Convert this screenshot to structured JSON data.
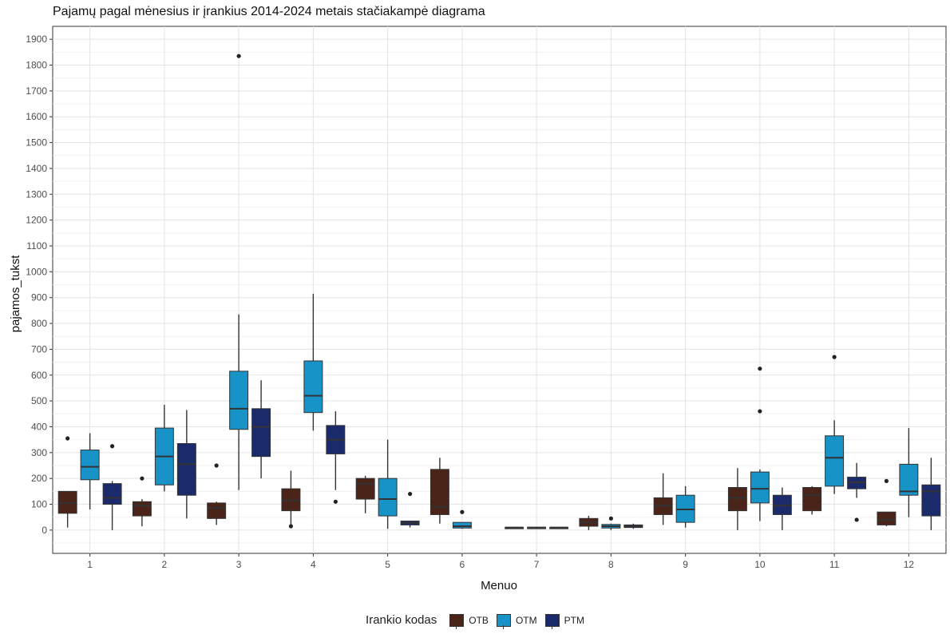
{
  "title": "Pajamų pagal mėnesius ir įrankius 2014-2024 metais stačiakampė diagrama",
  "legend": {
    "title": "Irankio kodas",
    "items": [
      {
        "label": "OTB",
        "color": "#4a2419"
      },
      {
        "label": "OTM",
        "color": "#1793c8"
      },
      {
        "label": "PTM",
        "color": "#1b2a6b"
      }
    ]
  },
  "chart_data": {
    "type": "boxplot",
    "title": "Pajamų pagal mėnesius ir įrankius 2014-2024 metais stačiakampė diagrama",
    "xlabel": "Menuo",
    "ylabel": "pajamos_tukst",
    "categories": [
      "1",
      "2",
      "3",
      "4",
      "5",
      "6",
      "7",
      "8",
      "9",
      "10",
      "11",
      "12"
    ],
    "yticks": [
      0,
      100,
      200,
      300,
      400,
      500,
      600,
      700,
      800,
      900,
      1000,
      1100,
      1200,
      1300,
      1400,
      1500,
      1600,
      1700,
      1800,
      1900
    ],
    "ylim": [
      -90,
      1950
    ],
    "grid": true,
    "legend_position": "bottom",
    "series": [
      {
        "name": "OTB",
        "color": "#4a2419",
        "boxes": [
          {
            "x": "1",
            "min": 10,
            "q1": 65,
            "median": 105,
            "q3": 150,
            "max": 150,
            "outliers": [
              355
            ]
          },
          {
            "x": "2",
            "min": 15,
            "q1": 55,
            "median": 95,
            "q3": 110,
            "max": 120,
            "outliers": [
              200
            ]
          },
          {
            "x": "3",
            "min": 20,
            "q1": 45,
            "median": 85,
            "q3": 105,
            "max": 110,
            "outliers": [
              250
            ]
          },
          {
            "x": "4",
            "min": 20,
            "q1": 75,
            "median": 115,
            "q3": 160,
            "max": 230,
            "outliers": [
              15
            ]
          },
          {
            "x": "5",
            "min": 65,
            "q1": 120,
            "median": 180,
            "q3": 200,
            "max": 210,
            "outliers": []
          },
          {
            "x": "6",
            "min": 25,
            "q1": 60,
            "median": 90,
            "q3": 235,
            "max": 280,
            "outliers": []
          },
          {
            "x": "7",
            "min": 10,
            "q1": 10,
            "median": 10,
            "q3": 10,
            "max": 10,
            "outliers": []
          },
          {
            "x": "8",
            "min": 0,
            "q1": 15,
            "median": 30,
            "q3": 45,
            "max": 55,
            "outliers": []
          },
          {
            "x": "9",
            "min": 20,
            "q1": 60,
            "median": 95,
            "q3": 125,
            "max": 220,
            "outliers": []
          },
          {
            "x": "10",
            "min": 0,
            "q1": 75,
            "median": 125,
            "q3": 165,
            "max": 240,
            "outliers": []
          },
          {
            "x": "11",
            "min": 60,
            "q1": 75,
            "median": 135,
            "q3": 165,
            "max": 170,
            "outliers": []
          },
          {
            "x": "12",
            "min": 15,
            "q1": 20,
            "median": 40,
            "q3": 70,
            "max": 70,
            "outliers": [
              190
            ]
          }
        ]
      },
      {
        "name": "OTM",
        "color": "#1793c8",
        "boxes": [
          {
            "x": "1",
            "min": 80,
            "q1": 195,
            "median": 245,
            "q3": 310,
            "max": 375,
            "outliers": []
          },
          {
            "x": "2",
            "min": 150,
            "q1": 175,
            "median": 285,
            "q3": 395,
            "max": 485,
            "outliers": []
          },
          {
            "x": "3",
            "min": 155,
            "q1": 390,
            "median": 470,
            "q3": 615,
            "max": 835,
            "outliers": [
              1835
            ]
          },
          {
            "x": "4",
            "min": 385,
            "q1": 455,
            "median": 520,
            "q3": 655,
            "max": 915,
            "outliers": []
          },
          {
            "x": "5",
            "min": 5,
            "q1": 55,
            "median": 120,
            "q3": 200,
            "max": 350,
            "outliers": []
          },
          {
            "x": "6",
            "min": 5,
            "q1": 8,
            "median": 15,
            "q3": 30,
            "max": 30,
            "outliers": [
              70
            ]
          },
          {
            "x": "7",
            "min": 10,
            "q1": 10,
            "median": 10,
            "q3": 10,
            "max": 10,
            "outliers": []
          },
          {
            "x": "8",
            "min": 0,
            "q1": 8,
            "median": 15,
            "q3": 22,
            "max": 25,
            "outliers": [
              45
            ]
          },
          {
            "x": "9",
            "min": 10,
            "q1": 30,
            "median": 80,
            "q3": 135,
            "max": 170,
            "outliers": []
          },
          {
            "x": "10",
            "min": 35,
            "q1": 105,
            "median": 160,
            "q3": 225,
            "max": 235,
            "outliers": [
              460,
              625
            ]
          },
          {
            "x": "11",
            "min": 140,
            "q1": 170,
            "median": 280,
            "q3": 365,
            "max": 425,
            "outliers": [
              670
            ]
          },
          {
            "x": "12",
            "min": 50,
            "q1": 135,
            "median": 150,
            "q3": 255,
            "max": 395,
            "outliers": []
          }
        ]
      },
      {
        "name": "PTM",
        "color": "#1b2a6b",
        "boxes": [
          {
            "x": "1",
            "min": 0,
            "q1": 100,
            "median": 125,
            "q3": 180,
            "max": 190,
            "outliers": [
              325
            ]
          },
          {
            "x": "2",
            "min": 45,
            "q1": 135,
            "median": 255,
            "q3": 335,
            "max": 465,
            "outliers": []
          },
          {
            "x": "3",
            "min": 200,
            "q1": 285,
            "median": 400,
            "q3": 470,
            "max": 580,
            "outliers": []
          },
          {
            "x": "4",
            "min": 155,
            "q1": 295,
            "median": 350,
            "q3": 405,
            "max": 460,
            "outliers": [
              110
            ]
          },
          {
            "x": "5",
            "min": 10,
            "q1": 20,
            "median": 28,
            "q3": 35,
            "max": 35,
            "outliers": [
              140
            ]
          },
          {
            "x": "7",
            "min": 10,
            "q1": 10,
            "median": 10,
            "q3": 10,
            "max": 10,
            "outliers": []
          },
          {
            "x": "8",
            "min": 5,
            "q1": 10,
            "median": 15,
            "q3": 20,
            "max": 25,
            "outliers": []
          },
          {
            "x": "10",
            "min": 0,
            "q1": 60,
            "median": 95,
            "q3": 135,
            "max": 165,
            "outliers": []
          },
          {
            "x": "11",
            "min": 125,
            "q1": 160,
            "median": 185,
            "q3": 205,
            "max": 260,
            "outliers": [
              40
            ]
          },
          {
            "x": "12",
            "min": 0,
            "q1": 55,
            "median": 150,
            "q3": 175,
            "max": 280,
            "outliers": []
          }
        ]
      }
    ]
  }
}
